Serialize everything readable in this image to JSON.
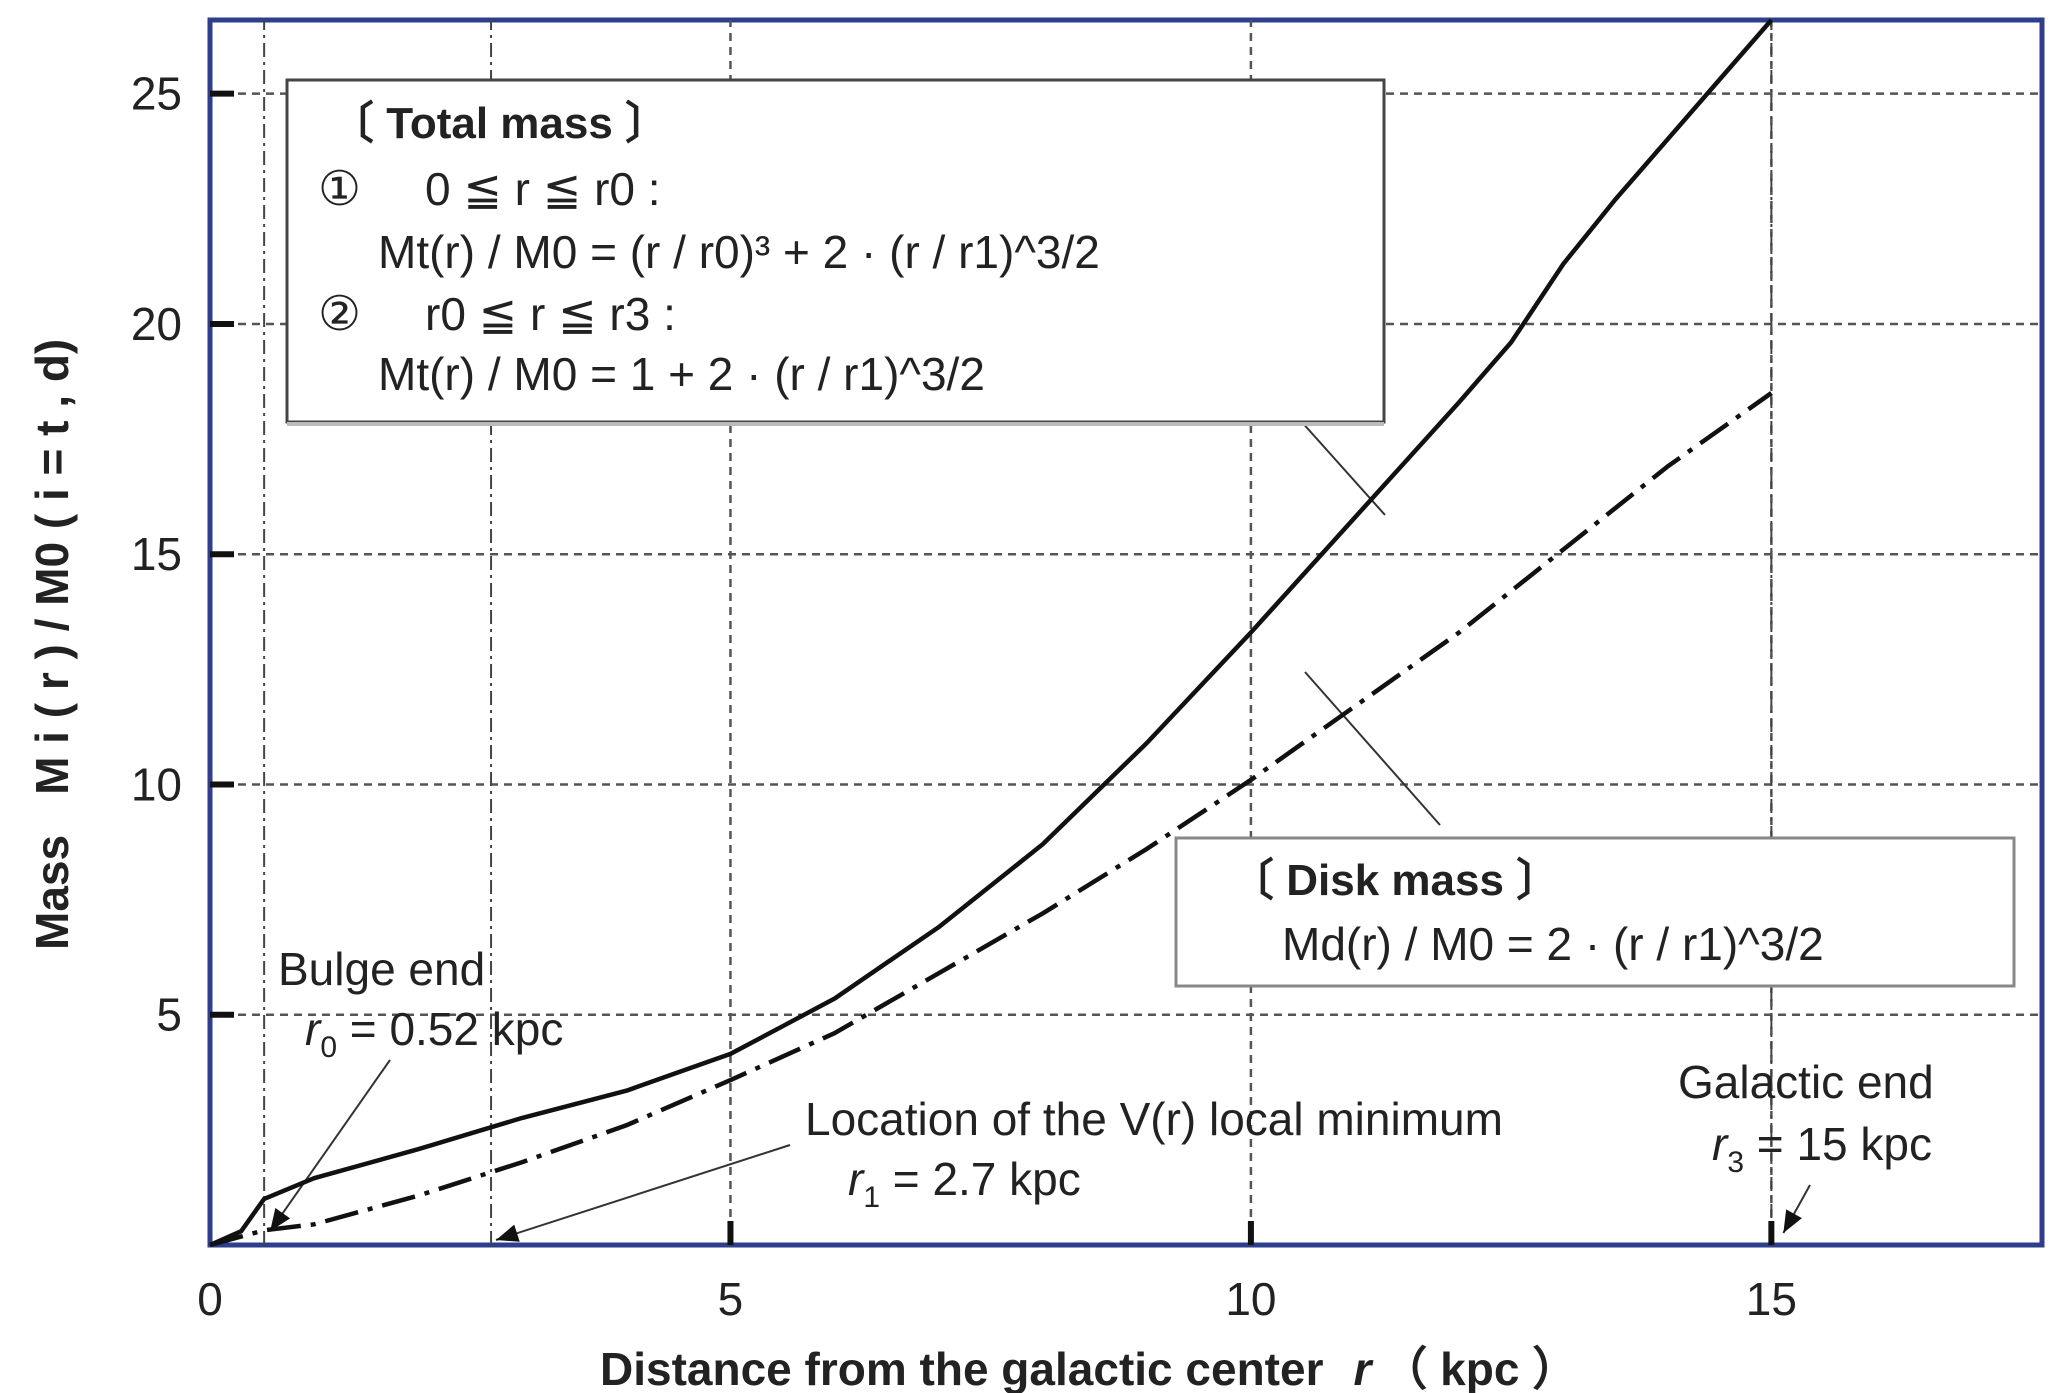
{
  "chart_data": {
    "type": "line",
    "xlabel": "Distance from the galactic center",
    "xlabel_var": "r",
    "xlabel_unit": "（ kpc ）",
    "ylabel": "Mass",
    "ylabel_expr": "M i ( r ) / M0 ( i = t , d)",
    "xlim": [
      0,
      17.6
    ],
    "ylim": [
      0,
      26.6
    ],
    "xticks": [
      0,
      5,
      10,
      15
    ],
    "xtick_labels": [
      "0",
      "5",
      "10",
      "15"
    ],
    "yticks": [
      5,
      10,
      15,
      20,
      25
    ],
    "ytick_labels": [
      "5",
      "10",
      "15",
      "20",
      "25"
    ],
    "grid": true,
    "legend": "none",
    "series": [
      {
        "style": "solid",
        "color": "#111111",
        "x": [
          0,
          0.3,
          0.52,
          1,
          2,
          3,
          4,
          4.5,
          5,
          5.5,
          6,
          7,
          8,
          9,
          10,
          11,
          12,
          12.5,
          13,
          13.5,
          14,
          14.5,
          15
        ],
        "y": [
          0,
          0.3,
          1.0,
          1.45,
          2.08,
          2.76,
          3.35,
          3.75,
          4.15,
          4.75,
          5.35,
          6.9,
          8.7,
          10.9,
          13.3,
          15.8,
          18.3,
          19.6,
          21.3,
          22.7,
          24.0,
          25.3,
          26.6
        ]
      },
      {
        "style": "dashdot",
        "color": "#111111",
        "x": [
          0,
          0.52,
          1,
          2,
          3,
          4,
          5,
          6,
          7,
          8,
          9,
          10,
          11,
          12,
          13,
          14,
          15
        ],
        "y": [
          0,
          0.32,
          0.45,
          1.07,
          1.8,
          2.6,
          3.58,
          4.6,
          5.9,
          7.2,
          8.6,
          10.1,
          11.7,
          13.3,
          15.1,
          16.9,
          18.5
        ]
      }
    ],
    "vlines": [
      0.52,
      2.7,
      15
    ],
    "annotations": {
      "bulge_end": {
        "title": "Bulge end",
        "var": "r",
        "sub": "0",
        "value": " = 0.52 kpc"
      },
      "local_min": {
        "title": "Location of the V(r) local minimum",
        "var": "r",
        "sub": "1",
        "value": " = 2.7 kpc"
      },
      "galactic_end": {
        "title": "Galactic end",
        "var": "r",
        "sub": "3",
        "value": " =  15 kpc"
      }
    },
    "total_mass_box": {
      "heading": "〔 Total mass 〕",
      "case1_marker": "①",
      "case1_cond": "0 ≦ r ≦ r0 :",
      "case1_formula": "Mt(r) / M0 = (r / r0)³ + 2 · (r / r1)^3/2",
      "case2_marker": "②",
      "case2_cond": "r0 ≦ r ≦ r3 :",
      "case2_formula": "Mt(r) / M0 = 1 + 2 · (r / r1)^3/2"
    },
    "disk_mass_box": {
      "heading": "〔 Disk mass 〕",
      "formula": "Md(r) / M0 = 2 · (r / r1)^3/2"
    }
  }
}
